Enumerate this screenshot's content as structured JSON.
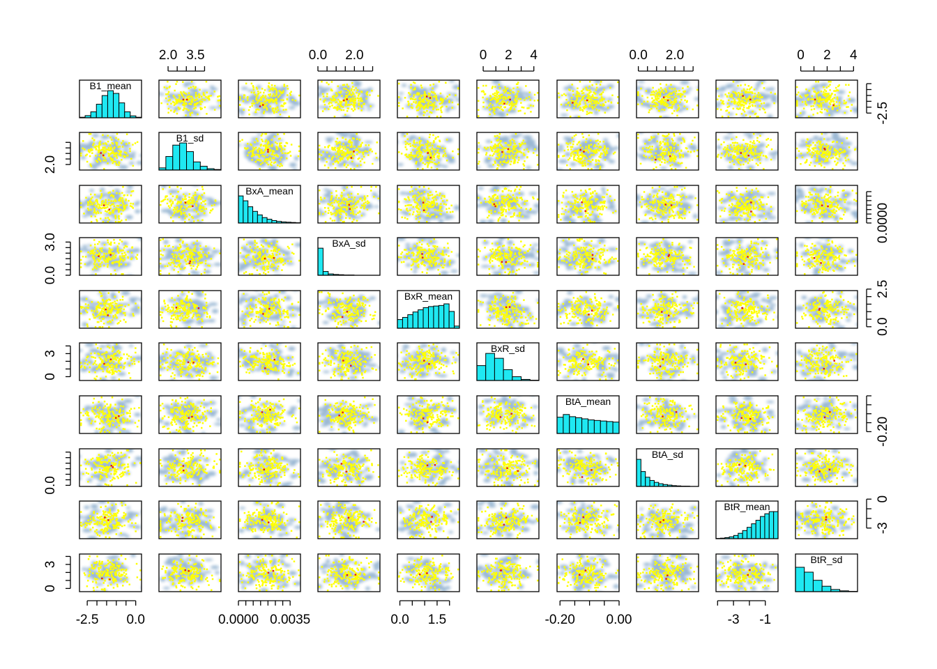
{
  "chart_data": {
    "type": "scatter-matrix",
    "variables": [
      "B1_mean",
      "B1_sd",
      "BxA_mean",
      "BxA_sd",
      "BxR_mean",
      "BxR_sd",
      "BtA_mean",
      "BtA_sd",
      "BtR_mean",
      "BtR_sd"
    ],
    "ranges": [
      [
        -2.9,
        0.3
      ],
      [
        1.5,
        4.9
      ],
      [
        0.0,
        0.0042
      ],
      [
        0.0,
        3.4
      ],
      [
        -0.1,
        2.4
      ],
      [
        -0.5,
        4.4
      ],
      [
        -0.21,
        0.0
      ],
      [
        -0.1,
        3.3
      ],
      [
        -4.1,
        -0.2
      ],
      [
        -0.4,
        4.3
      ]
    ],
    "axes": {
      "top": [
        {
          "var": 1,
          "ticks": [
            {
              "v": 2.0,
              "label": "2.0"
            },
            {
              "v": 2.5
            },
            {
              "v": 3.0
            },
            {
              "v": 3.5,
              "label": "3.5"
            },
            {
              "v": 4.0
            }
          ]
        },
        {
          "var": 3,
          "ticks": [
            {
              "v": 0.0,
              "label": "0.0"
            },
            {
              "v": 0.5
            },
            {
              "v": 1.0
            },
            {
              "v": 1.5
            },
            {
              "v": 2.0,
              "label": "2.0"
            },
            {
              "v": 2.5
            },
            {
              "v": 3.0
            }
          ]
        },
        {
          "var": 5,
          "ticks": [
            {
              "v": 0,
              "label": "0"
            },
            {
              "v": 1
            },
            {
              "v": 2,
              "label": "2"
            },
            {
              "v": 3
            },
            {
              "v": 4,
              "label": "4"
            }
          ]
        },
        {
          "var": 7,
          "ticks": [
            {
              "v": 0.0,
              "label": "0.0"
            },
            {
              "v": 0.5
            },
            {
              "v": 1.0
            },
            {
              "v": 1.5
            },
            {
              "v": 2.0,
              "label": "2.0"
            },
            {
              "v": 2.5
            },
            {
              "v": 3.0
            }
          ]
        },
        {
          "var": 9,
          "ticks": [
            {
              "v": 0,
              "label": "0"
            },
            {
              "v": 1
            },
            {
              "v": 2,
              "label": "2"
            },
            {
              "v": 3
            },
            {
              "v": 4,
              "label": "4"
            }
          ]
        }
      ],
      "bottom": [
        {
          "var": 0,
          "ticks": [
            {
              "v": -2.5,
              "label": "-2.5"
            },
            {
              "v": -2.0
            },
            {
              "v": -1.5
            },
            {
              "v": -1.0
            },
            {
              "v": -0.5
            },
            {
              "v": 0.0,
              "label": "0.0"
            }
          ]
        },
        {
          "var": 2,
          "ticks": [
            {
              "v": 0.0,
              "label": "0.0000"
            },
            {
              "v": 0.0005
            },
            {
              "v": 0.001
            },
            {
              "v": 0.0015
            },
            {
              "v": 0.002
            },
            {
              "v": 0.0025
            },
            {
              "v": 0.003
            },
            {
              "v": 0.0035,
              "label": "0.0035"
            }
          ]
        },
        {
          "var": 4,
          "ticks": [
            {
              "v": 0.0,
              "label": "0.0"
            },
            {
              "v": 0.5
            },
            {
              "v": 1.0
            },
            {
              "v": 1.5,
              "label": "1.5"
            },
            {
              "v": 2.0
            }
          ]
        },
        {
          "var": 6,
          "ticks": [
            {
              "v": -0.2,
              "label": "-0.20"
            },
            {
              "v": -0.15
            },
            {
              "v": -0.1
            },
            {
              "v": -0.05
            },
            {
              "v": 0.0,
              "label": "0.00"
            }
          ]
        },
        {
          "var": 8,
          "ticks": [
            {
              "v": -4
            },
            {
              "v": -3,
              "label": "-3"
            },
            {
              "v": -2
            },
            {
              "v": -1,
              "label": "-1"
            }
          ]
        }
      ],
      "left": [
        {
          "var": 1,
          "ticks": [
            {
              "v": 2.0,
              "label": "2.0"
            },
            {
              "v": 2.5
            },
            {
              "v": 3.0
            },
            {
              "v": 3.5
            },
            {
              "v": 4.0
            }
          ]
        },
        {
          "var": 3,
          "ticks": [
            {
              "v": 0.0,
              "label": "0.0"
            },
            {
              "v": 0.5
            },
            {
              "v": 1.0
            },
            {
              "v": 1.5
            },
            {
              "v": 2.0
            },
            {
              "v": 2.5
            },
            {
              "v": 3.0,
              "label": "3.0"
            }
          ]
        },
        {
          "var": 5,
          "ticks": [
            {
              "v": 0,
              "label": "0"
            },
            {
              "v": 1
            },
            {
              "v": 2
            },
            {
              "v": 3,
              "label": "3"
            },
            {
              "v": 4
            }
          ]
        },
        {
          "var": 7,
          "ticks": [
            {
              "v": 0.0,
              "label": "0.0"
            },
            {
              "v": 0.5
            },
            {
              "v": 1.0
            },
            {
              "v": 1.5
            },
            {
              "v": 2.0
            },
            {
              "v": 2.5
            },
            {
              "v": 3.0
            }
          ]
        },
        {
          "var": 9,
          "ticks": [
            {
              "v": 0,
              "label": "0"
            },
            {
              "v": 1
            },
            {
              "v": 2
            },
            {
              "v": 3,
              "label": "3"
            },
            {
              "v": 4
            }
          ]
        }
      ],
      "right": [
        {
          "var": 0,
          "ticks": [
            {
              "v": -2.5,
              "label": "-2.5"
            },
            {
              "v": -2.0
            },
            {
              "v": -1.5
            },
            {
              "v": -1.0
            },
            {
              "v": -0.5
            },
            {
              "v": 0.0
            }
          ]
        },
        {
          "var": 2,
          "ticks": [
            {
              "v": 0.0,
              "label": "0.0000"
            },
            {
              "v": 0.0005
            },
            {
              "v": 0.001
            },
            {
              "v": 0.0015
            },
            {
              "v": 0.002
            },
            {
              "v": 0.0025
            },
            {
              "v": 0.003
            },
            {
              "v": 0.0035
            }
          ]
        },
        {
          "var": 4,
          "ticks": [
            {
              "v": 0.0,
              "label": "0.0"
            },
            {
              "v": 0.5
            },
            {
              "v": 1.0
            },
            {
              "v": 1.5
            },
            {
              "v": 2.0
            },
            {
              "v": 2.5,
              "label": "2.5"
            }
          ]
        },
        {
          "var": 6,
          "ticks": [
            {
              "v": -0.2,
              "label": "-0.20"
            },
            {
              "v": -0.15
            },
            {
              "v": -0.1
            },
            {
              "v": -0.05
            },
            {
              "v": 0.0
            }
          ]
        },
        {
          "var": 8,
          "ticks": [
            {
              "v": -3,
              "label": "-3"
            },
            {
              "v": -2
            },
            {
              "v": -1
            },
            {
              "v": 0,
              "label": "0"
            }
          ]
        }
      ]
    },
    "histograms": [
      [
        0.02,
        0.08,
        0.22,
        0.5,
        0.82,
        1.0,
        0.9,
        0.55,
        0.22,
        0.07,
        0.02
      ],
      [
        0.08,
        0.5,
        0.92,
        1.0,
        0.68,
        0.3,
        0.14,
        0.05,
        0.02
      ],
      [
        1.0,
        0.82,
        0.6,
        0.43,
        0.3,
        0.2,
        0.14,
        0.09,
        0.06,
        0.04,
        0.03,
        0.02,
        0.01
      ],
      [
        1.0,
        0.14,
        0.05,
        0.03,
        0.02,
        0.01,
        0.01,
        0.005,
        0.005,
        0.0,
        0.0,
        0.0
      ],
      [
        0.32,
        0.4,
        0.5,
        0.6,
        0.68,
        0.76,
        0.8,
        0.82,
        0.84,
        0.9,
        0.62,
        0.08
      ],
      [
        0.55,
        1.0,
        0.82,
        0.4,
        0.14,
        0.04,
        0.01
      ],
      [
        0.6,
        0.7,
        0.62,
        0.58,
        0.54,
        0.5,
        0.48,
        0.46,
        0.44,
        0.42
      ],
      [
        1.0,
        0.55,
        0.34,
        0.22,
        0.15,
        0.1,
        0.07,
        0.05,
        0.03,
        0.02,
        0.01,
        0.01,
        0.005,
        0.005
      ],
      [
        0.01,
        0.02,
        0.04,
        0.07,
        0.12,
        0.2,
        0.3,
        0.42,
        0.55,
        0.68,
        0.82,
        0.92,
        1.0,
        1.0
      ],
      [
        0.9,
        0.72,
        0.42,
        0.2,
        0.08,
        0.03,
        0.01
      ]
    ],
    "colors": {
      "background": "#ffffff",
      "frame": "#000000",
      "density": "#4a7fb0",
      "points": "#ffff00",
      "highlight": "#e0201c",
      "hist_fill": "#1fe8f2"
    }
  }
}
